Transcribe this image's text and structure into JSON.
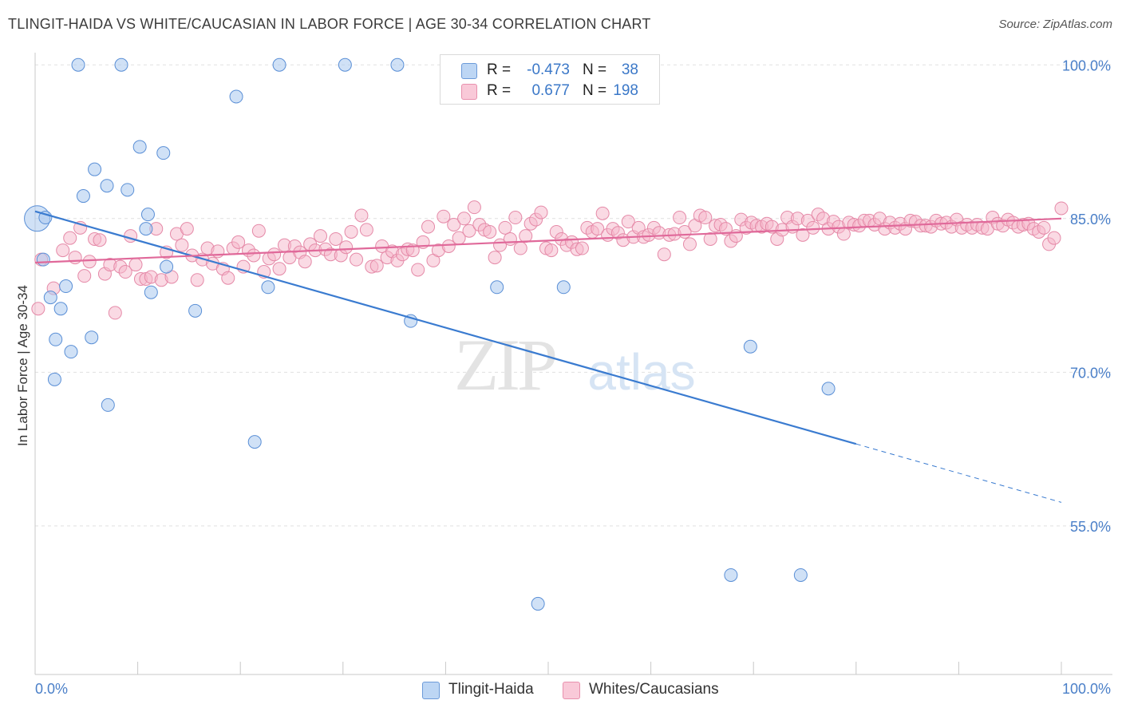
{
  "title": "TLINGIT-HAIDA VS WHITE/CAUCASIAN IN LABOR FORCE | AGE 30-34 CORRELATION CHART",
  "source": "Source: ZipAtlas.com",
  "watermark": {
    "zip": "ZIP",
    "atlas": "atlas"
  },
  "legend": {
    "rows": [
      {
        "r_label": "R =",
        "r_value": "-0.473",
        "n_label": "N =",
        "n_value": "38",
        "color": "#a9c8ef"
      },
      {
        "r_label": "R =",
        "r_value": "0.677",
        "n_label": "N =",
        "n_value": "198",
        "color": "#f6b5c9"
      }
    ],
    "bottom": [
      "Tlingit-Haida",
      "Whites/Caucasians"
    ]
  },
  "colors": {
    "blue_fill": "#a9c8ef",
    "blue_stroke": "#5a8fd6",
    "blue_line": "#3a7bd0",
    "pink_fill": "#f6b5c9",
    "pink_stroke": "#e58aa8",
    "pink_line": "#e0699a",
    "tick_label": "#4a7fc8",
    "grid": "#e0e0e0"
  },
  "chart_data": {
    "type": "scatter",
    "title": "TLINGIT-HAIDA VS WHITE/CAUCASIAN IN LABOR FORCE | AGE 30-34 CORRELATION CHART",
    "xlabel": "",
    "ylabel": "In Labor Force | Age 30-34",
    "xlim": [
      0,
      100
    ],
    "ylim": [
      40.5,
      101.5
    ],
    "x_tick_labels": [
      "0.0%",
      "100.0%"
    ],
    "y_ticks": [
      55,
      70,
      85,
      100
    ],
    "y_tick_labels": [
      "55.0%",
      "70.0%",
      "85.0%",
      "100.0%"
    ],
    "grid": true,
    "series": [
      {
        "name": "Tlingit-Haida",
        "r": -0.473,
        "n": 38,
        "trend": {
          "x0": 0,
          "y0": 85.7,
          "x1": 80,
          "y1": 63.0,
          "dashed_to_x": 100,
          "dashed_to_y": 57.3
        },
        "points": [
          [
            0.2,
            85.0
          ],
          [
            1.0,
            85.1
          ],
          [
            0.8,
            81.0
          ],
          [
            1.5,
            77.3
          ],
          [
            2.5,
            76.2
          ],
          [
            2.0,
            73.2
          ],
          [
            3.5,
            72.0
          ],
          [
            1.9,
            69.3
          ],
          [
            5.5,
            73.4
          ],
          [
            3.0,
            78.4
          ],
          [
            4.7,
            87.2
          ],
          [
            5.8,
            89.8
          ],
          [
            7.0,
            88.2
          ],
          [
            9.0,
            87.8
          ],
          [
            10.2,
            92.0
          ],
          [
            12.5,
            91.4
          ],
          [
            11.0,
            85.4
          ],
          [
            10.8,
            84.0
          ],
          [
            11.3,
            77.8
          ],
          [
            12.8,
            80.3
          ],
          [
            7.1,
            66.8
          ],
          [
            15.6,
            76.0
          ],
          [
            19.6,
            96.9
          ],
          [
            21.4,
            63.2
          ],
          [
            22.7,
            78.3
          ],
          [
            36.6,
            75.0
          ],
          [
            45.0,
            78.3
          ],
          [
            51.5,
            78.3
          ],
          [
            69.7,
            72.5
          ],
          [
            77.3,
            68.4
          ],
          [
            67.8,
            50.2
          ],
          [
            74.6,
            50.2
          ],
          [
            49.0,
            47.4
          ],
          [
            4.2,
            100.0
          ],
          [
            8.4,
            100.0
          ],
          [
            23.8,
            100.0
          ],
          [
            30.2,
            100.0
          ],
          [
            35.3,
            100.0
          ]
        ]
      },
      {
        "name": "Whites/Caucasians",
        "r": 0.677,
        "n": 198,
        "trend": {
          "x0": 0,
          "y0": 80.7,
          "x1": 100,
          "y1": 85.0
        },
        "points": [
          [
            0.3,
            76.2
          ],
          [
            0.6,
            81.0
          ],
          [
            1.8,
            78.2
          ],
          [
            2.7,
            81.9
          ],
          [
            3.4,
            83.1
          ],
          [
            3.9,
            81.2
          ],
          [
            4.4,
            84.1
          ],
          [
            4.8,
            79.4
          ],
          [
            5.3,
            80.8
          ],
          [
            5.8,
            83.0
          ],
          [
            6.3,
            82.9
          ],
          [
            6.8,
            79.6
          ],
          [
            7.3,
            80.5
          ],
          [
            7.8,
            75.8
          ],
          [
            8.3,
            80.3
          ],
          [
            8.8,
            79.8
          ],
          [
            9.3,
            83.3
          ],
          [
            9.8,
            80.5
          ],
          [
            10.3,
            79.1
          ],
          [
            10.8,
            79.1
          ],
          [
            11.3,
            79.3
          ],
          [
            11.8,
            84.0
          ],
          [
            12.3,
            79.0
          ],
          [
            12.8,
            81.7
          ],
          [
            13.3,
            79.3
          ],
          [
            13.8,
            83.5
          ],
          [
            14.3,
            82.4
          ],
          [
            14.8,
            84.0
          ],
          [
            15.3,
            81.4
          ],
          [
            15.8,
            79.0
          ],
          [
            16.3,
            81.0
          ],
          [
            16.8,
            82.1
          ],
          [
            17.3,
            80.6
          ],
          [
            17.8,
            81.8
          ],
          [
            18.3,
            80.1
          ],
          [
            18.8,
            79.2
          ],
          [
            19.3,
            82.1
          ],
          [
            19.8,
            82.7
          ],
          [
            20.3,
            80.3
          ],
          [
            20.8,
            81.9
          ],
          [
            21.3,
            81.4
          ],
          [
            21.8,
            83.8
          ],
          [
            22.3,
            79.8
          ],
          [
            22.8,
            81.1
          ],
          [
            23.3,
            81.5
          ],
          [
            23.8,
            80.1
          ],
          [
            24.3,
            82.4
          ],
          [
            24.8,
            81.2
          ],
          [
            25.3,
            82.3
          ],
          [
            25.8,
            81.7
          ],
          [
            26.3,
            80.8
          ],
          [
            26.8,
            82.5
          ],
          [
            27.3,
            81.9
          ],
          [
            27.8,
            83.3
          ],
          [
            28.3,
            82.0
          ],
          [
            28.8,
            81.5
          ],
          [
            29.3,
            83.0
          ],
          [
            29.8,
            81.4
          ],
          [
            30.3,
            82.2
          ],
          [
            30.8,
            83.7
          ],
          [
            31.3,
            81.0
          ],
          [
            31.8,
            85.3
          ],
          [
            32.3,
            83.9
          ],
          [
            32.8,
            80.3
          ],
          [
            33.3,
            80.4
          ],
          [
            33.8,
            82.3
          ],
          [
            34.3,
            81.2
          ],
          [
            34.8,
            81.8
          ],
          [
            35.3,
            80.9
          ],
          [
            35.8,
            81.5
          ],
          [
            36.3,
            82.0
          ],
          [
            36.8,
            81.9
          ],
          [
            37.3,
            80.0
          ],
          [
            37.8,
            82.7
          ],
          [
            38.3,
            84.2
          ],
          [
            38.8,
            80.9
          ],
          [
            39.3,
            81.9
          ],
          [
            39.8,
            85.2
          ],
          [
            40.3,
            82.3
          ],
          [
            40.8,
            84.4
          ],
          [
            41.3,
            83.1
          ],
          [
            41.8,
            85.0
          ],
          [
            42.3,
            83.8
          ],
          [
            42.8,
            86.1
          ],
          [
            43.3,
            84.4
          ],
          [
            43.8,
            83.9
          ],
          [
            44.3,
            83.7
          ],
          [
            44.8,
            81.2
          ],
          [
            45.3,
            82.4
          ],
          [
            45.8,
            84.1
          ],
          [
            46.3,
            83.0
          ],
          [
            46.8,
            85.1
          ],
          [
            47.3,
            82.1
          ],
          [
            47.8,
            83.3
          ],
          [
            48.3,
            84.5
          ],
          [
            48.8,
            84.9
          ],
          [
            49.3,
            85.6
          ],
          [
            49.8,
            82.1
          ],
          [
            50.3,
            81.9
          ],
          [
            50.8,
            83.7
          ],
          [
            51.3,
            83.0
          ],
          [
            51.8,
            82.4
          ],
          [
            52.3,
            82.7
          ],
          [
            52.8,
            82.0
          ],
          [
            53.3,
            82.1
          ],
          [
            53.8,
            84.1
          ],
          [
            54.3,
            83.7
          ],
          [
            54.8,
            84.0
          ],
          [
            55.3,
            85.5
          ],
          [
            55.8,
            83.4
          ],
          [
            56.3,
            84.0
          ],
          [
            56.8,
            83.6
          ],
          [
            57.3,
            82.9
          ],
          [
            57.8,
            84.7
          ],
          [
            58.3,
            83.2
          ],
          [
            58.8,
            84.1
          ],
          [
            59.3,
            83.2
          ],
          [
            59.8,
            83.4
          ],
          [
            60.3,
            84.1
          ],
          [
            60.8,
            83.6
          ],
          [
            61.3,
            81.5
          ],
          [
            61.8,
            83.4
          ],
          [
            62.3,
            83.5
          ],
          [
            62.8,
            85.1
          ],
          [
            63.3,
            83.7
          ],
          [
            63.8,
            82.5
          ],
          [
            64.3,
            84.3
          ],
          [
            64.8,
            85.3
          ],
          [
            65.3,
            85.1
          ],
          [
            65.8,
            83.0
          ],
          [
            66.3,
            84.3
          ],
          [
            66.8,
            84.4
          ],
          [
            67.3,
            84.0
          ],
          [
            67.8,
            82.8
          ],
          [
            68.3,
            83.3
          ],
          [
            68.8,
            84.9
          ],
          [
            69.3,
            84.1
          ],
          [
            69.8,
            84.6
          ],
          [
            70.3,
            84.3
          ],
          [
            70.8,
            84.2
          ],
          [
            71.3,
            84.5
          ],
          [
            71.8,
            84.2
          ],
          [
            72.3,
            83.0
          ],
          [
            72.8,
            83.9
          ],
          [
            73.3,
            85.1
          ],
          [
            73.8,
            84.2
          ],
          [
            74.3,
            85.0
          ],
          [
            74.8,
            83.4
          ],
          [
            75.3,
            84.8
          ],
          [
            75.8,
            84.1
          ],
          [
            76.3,
            85.4
          ],
          [
            76.8,
            85.0
          ],
          [
            77.3,
            84.0
          ],
          [
            77.8,
            84.7
          ],
          [
            78.3,
            84.2
          ],
          [
            78.8,
            83.5
          ],
          [
            79.3,
            84.6
          ],
          [
            79.8,
            84.4
          ],
          [
            80.3,
            84.3
          ],
          [
            80.8,
            84.8
          ],
          [
            81.3,
            84.8
          ],
          [
            81.8,
            84.4
          ],
          [
            82.3,
            85.0
          ],
          [
            82.8,
            84.0
          ],
          [
            83.3,
            84.6
          ],
          [
            83.8,
            84.1
          ],
          [
            84.3,
            84.5
          ],
          [
            84.8,
            84.0
          ],
          [
            85.3,
            84.8
          ],
          [
            85.8,
            84.7
          ],
          [
            86.3,
            84.3
          ],
          [
            86.8,
            84.3
          ],
          [
            87.3,
            84.2
          ],
          [
            87.8,
            84.8
          ],
          [
            88.3,
            84.5
          ],
          [
            88.8,
            84.6
          ],
          [
            89.3,
            84.2
          ],
          [
            89.8,
            84.9
          ],
          [
            90.3,
            84.1
          ],
          [
            90.8,
            84.4
          ],
          [
            91.3,
            84.1
          ],
          [
            91.8,
            84.4
          ],
          [
            92.3,
            84.1
          ],
          [
            92.8,
            84.0
          ],
          [
            93.3,
            85.1
          ],
          [
            93.8,
            84.5
          ],
          [
            94.3,
            84.3
          ],
          [
            94.8,
            84.9
          ],
          [
            95.3,
            84.6
          ],
          [
            95.8,
            84.2
          ],
          [
            96.3,
            84.4
          ],
          [
            96.8,
            84.5
          ],
          [
            97.3,
            84.0
          ],
          [
            97.8,
            83.7
          ],
          [
            98.3,
            84.1
          ],
          [
            98.8,
            82.5
          ],
          [
            99.3,
            83.1
          ],
          [
            100.0,
            86.0
          ]
        ]
      }
    ]
  }
}
